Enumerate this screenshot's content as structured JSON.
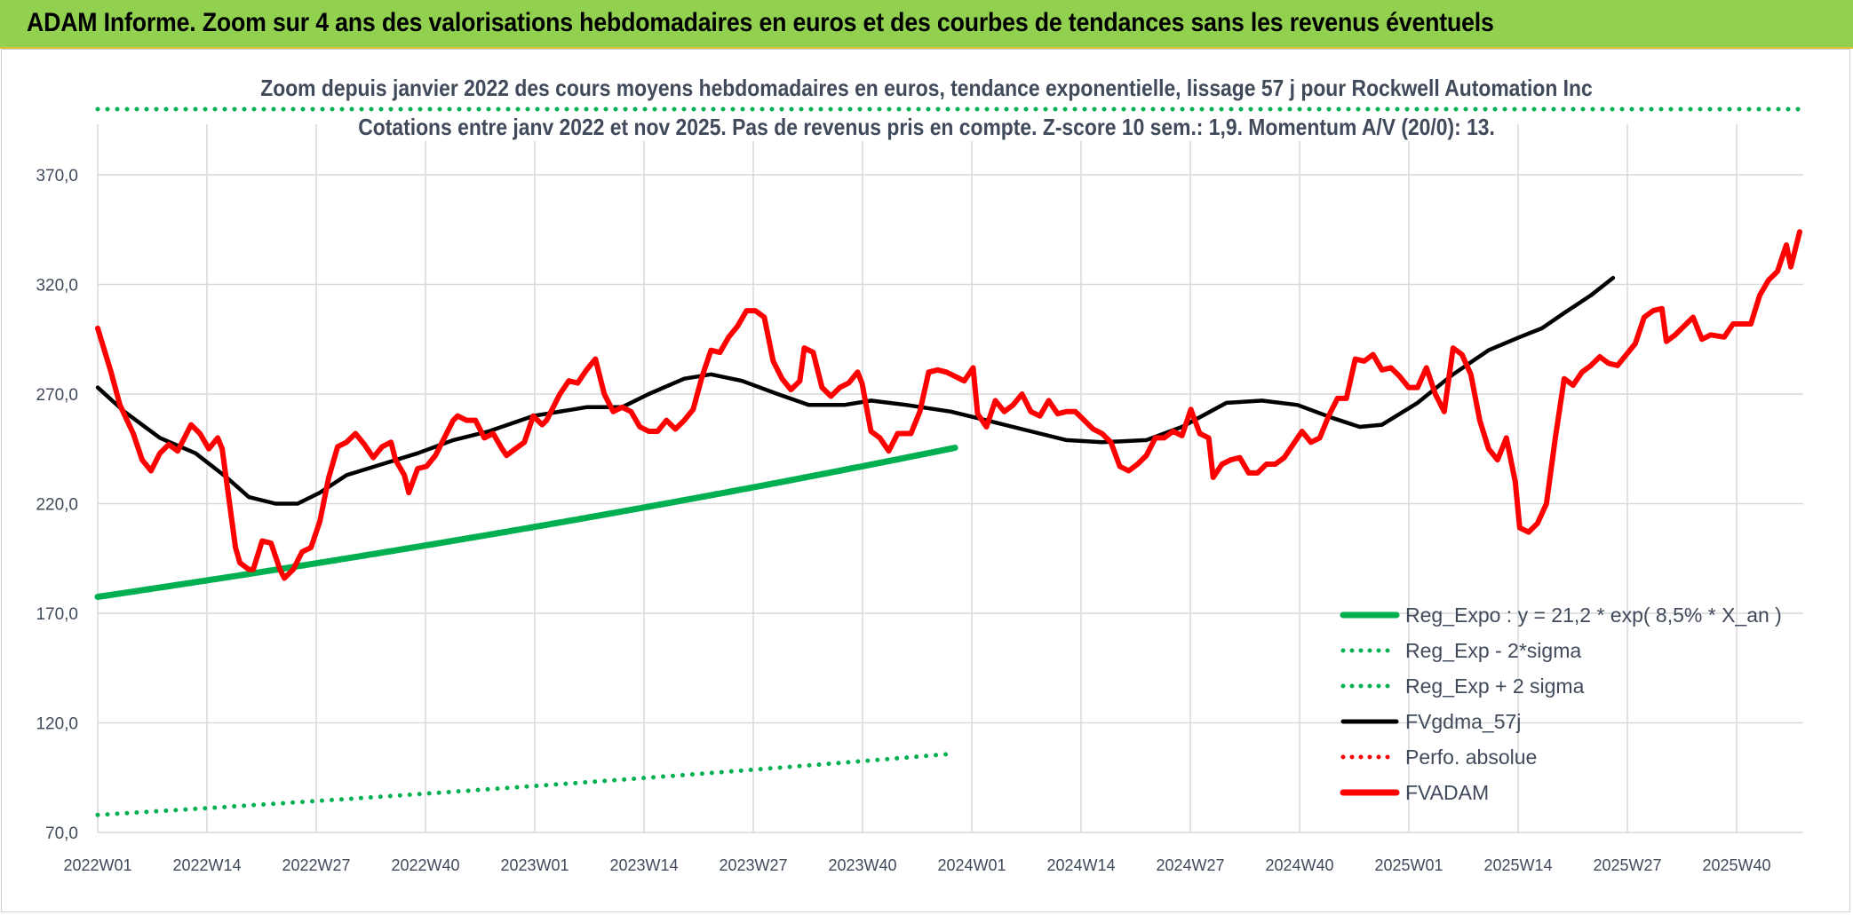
{
  "header": {
    "title": "ADAM Informe. Zoom sur 4 ans des valorisations hebdomadaires en euros et des courbes de tendances sans les revenus éventuels"
  },
  "chart_data": {
    "type": "line",
    "title": "Zoom depuis janvier 2022 des cours moyens hebdomadaires en euros, tendance exponentielle, lissage 57 j pour Rockwell Automation Inc",
    "subtitle": "Cotations entre janv 2022 et nov 2025. Pas de revenus pris en compte. Z-score 10 sem.: 1,9. Momentum A/V (20/0): 13.",
    "x_ticks": [
      "2022W01",
      "2022W14",
      "2022W27",
      "2022W40",
      "2023W01",
      "2023W14",
      "2023W27",
      "2023W40",
      "2024W01",
      "2024W14",
      "2024W27",
      "2024W40",
      "2025W01",
      "2025W14",
      "2025W27",
      "2025W40"
    ],
    "n_weeks": 205,
    "ylim": [
      70,
      400
    ],
    "y_ticks": [
      "70,0",
      "120,0",
      "170,0",
      "220,0",
      "270,0",
      "320,0",
      "370,0"
    ],
    "y_tick_values": [
      70,
      120,
      170,
      220,
      270,
      320,
      370
    ],
    "grid": true,
    "legend_position": "bottom-right",
    "series": [
      {
        "name": "Reg_Expo : y = 21,2 * exp( 8,5% *  X_an )",
        "style": "solid",
        "color": "#00b050",
        "start": 177.5,
        "end": 245.5
      },
      {
        "name": "Reg_Exp - 2*sigma",
        "style": "dotted",
        "color": "#00b050",
        "start": 78.0,
        "end": 106.0
      },
      {
        "name": "Reg_Exp + 2 sigma",
        "style": "dotted",
        "color": "#00b050",
        "start": 400.0,
        "end": 400.0
      },
      {
        "name": "FVgdma_57j",
        "style": "solid",
        "color": "#000000",
        "points": [
          [
            0,
            273
          ],
          [
            6,
            262
          ],
          [
            14,
            250
          ],
          [
            22,
            243
          ],
          [
            29,
            232
          ],
          [
            34,
            223
          ],
          [
            40,
            220
          ],
          [
            45,
            220
          ],
          [
            50,
            225
          ],
          [
            56,
            233
          ],
          [
            64,
            238
          ],
          [
            72,
            243
          ],
          [
            80,
            249
          ],
          [
            88,
            253
          ],
          [
            98,
            260
          ],
          [
            110,
            264
          ],
          [
            118,
            264
          ],
          [
            124,
            270
          ],
          [
            132,
            277
          ],
          [
            138,
            279
          ],
          [
            145,
            276
          ],
          [
            153,
            270
          ],
          [
            160,
            265
          ],
          [
            168,
            265
          ],
          [
            174,
            267
          ],
          [
            182,
            265
          ],
          [
            192,
            262
          ],
          [
            200,
            258
          ],
          [
            210,
            253
          ],
          [
            218,
            249
          ],
          [
            226,
            248
          ],
          [
            236,
            249
          ],
          [
            244,
            255
          ],
          [
            254,
            266
          ],
          [
            262,
            267
          ],
          [
            270,
            265
          ],
          [
            278,
            259
          ],
          [
            284,
            255
          ],
          [
            289,
            256
          ],
          [
            297,
            266
          ],
          [
            305,
            279
          ],
          [
            313,
            290
          ],
          [
            320,
            296
          ],
          [
            325,
            300
          ],
          [
            330,
            307
          ],
          [
            336,
            315
          ],
          [
            341,
            323
          ]
        ]
      },
      {
        "name": "Perfo. absolue",
        "style": "dotted",
        "color": "#ff0000",
        "points": []
      },
      {
        "name": "FVADAM",
        "style": "solid",
        "color": "#ff0000",
        "points": [
          [
            0,
            300
          ],
          [
            3,
            280
          ],
          [
            5,
            265
          ],
          [
            8,
            252
          ],
          [
            10,
            240
          ],
          [
            12,
            235
          ],
          [
            14,
            243
          ],
          [
            16,
            247
          ],
          [
            18,
            244
          ],
          [
            20,
            252
          ],
          [
            21,
            256
          ],
          [
            23,
            252
          ],
          [
            25,
            245
          ],
          [
            27,
            250
          ],
          [
            28,
            245
          ],
          [
            30,
            215
          ],
          [
            31,
            200
          ],
          [
            32,
            193
          ],
          [
            34,
            190
          ],
          [
            35,
            190
          ],
          [
            37,
            203
          ],
          [
            39,
            202
          ],
          [
            41,
            190
          ],
          [
            42,
            186
          ],
          [
            44,
            190
          ],
          [
            46,
            198
          ],
          [
            48,
            200
          ],
          [
            50,
            212
          ],
          [
            52,
            232
          ],
          [
            54,
            246
          ],
          [
            56,
            248
          ],
          [
            58,
            252
          ],
          [
            60,
            247
          ],
          [
            62,
            241
          ],
          [
            64,
            246
          ],
          [
            66,
            248
          ],
          [
            67,
            240
          ],
          [
            69,
            233
          ],
          [
            70,
            225
          ],
          [
            72,
            236
          ],
          [
            74,
            237
          ],
          [
            76,
            242
          ],
          [
            78,
            250
          ],
          [
            80,
            258
          ],
          [
            81,
            260
          ],
          [
            83,
            258
          ],
          [
            85,
            258
          ],
          [
            87,
            250
          ],
          [
            89,
            252
          ],
          [
            91,
            245
          ],
          [
            92,
            242
          ],
          [
            94,
            245
          ],
          [
            96,
            248
          ],
          [
            98,
            260
          ],
          [
            100,
            256
          ],
          [
            101,
            258
          ],
          [
            103,
            266
          ],
          [
            104,
            270
          ],
          [
            106,
            276
          ],
          [
            108,
            275
          ],
          [
            110,
            281
          ],
          [
            112,
            286
          ],
          [
            114,
            270
          ],
          [
            116,
            262
          ],
          [
            118,
            264
          ],
          [
            120,
            262
          ],
          [
            122,
            255
          ],
          [
            124,
            253
          ],
          [
            126,
            253
          ],
          [
            128,
            258
          ],
          [
            130,
            254
          ],
          [
            132,
            258
          ],
          [
            134,
            263
          ],
          [
            136,
            278
          ],
          [
            138,
            290
          ],
          [
            140,
            289
          ],
          [
            142,
            296
          ],
          [
            144,
            301
          ],
          [
            146,
            308
          ],
          [
            148,
            308
          ],
          [
            150,
            305
          ],
          [
            152,
            285
          ],
          [
            154,
            277
          ],
          [
            156,
            272
          ],
          [
            158,
            276
          ],
          [
            159,
            291
          ],
          [
            161,
            289
          ],
          [
            163,
            273
          ],
          [
            165,
            269
          ],
          [
            167,
            273
          ],
          [
            169,
            275
          ],
          [
            171,
            280
          ],
          [
            172,
            275
          ],
          [
            174,
            253
          ],
          [
            176,
            250
          ],
          [
            178,
            244
          ],
          [
            180,
            252
          ],
          [
            182,
            252
          ],
          [
            183,
            252
          ],
          [
            185,
            262
          ],
          [
            187,
            280
          ],
          [
            189,
            281
          ],
          [
            191,
            280
          ],
          [
            193,
            278
          ],
          [
            195,
            276
          ],
          [
            197,
            282
          ],
          [
            198,
            261
          ],
          [
            200,
            255
          ],
          [
            202,
            267
          ],
          [
            204,
            262
          ],
          [
            206,
            265
          ],
          [
            208,
            270
          ],
          [
            210,
            262
          ],
          [
            212,
            260
          ],
          [
            214,
            267
          ],
          [
            216,
            261
          ],
          [
            218,
            262
          ],
          [
            220,
            262
          ],
          [
            222,
            258
          ],
          [
            224,
            254
          ],
          [
            226,
            252
          ],
          [
            228,
            248
          ],
          [
            230,
            237
          ],
          [
            232,
            235
          ],
          [
            234,
            238
          ],
          [
            236,
            242
          ],
          [
            238,
            250
          ],
          [
            240,
            250
          ],
          [
            242,
            253
          ],
          [
            244,
            251
          ],
          [
            246,
            263
          ],
          [
            248,
            252
          ],
          [
            250,
            250
          ],
          [
            251,
            232
          ],
          [
            253,
            238
          ],
          [
            255,
            240
          ],
          [
            257,
            241
          ],
          [
            259,
            234
          ],
          [
            261,
            234
          ],
          [
            263,
            238
          ],
          [
            265,
            238
          ],
          [
            267,
            241
          ],
          [
            269,
            247
          ],
          [
            271,
            253
          ],
          [
            273,
            248
          ],
          [
            275,
            250
          ],
          [
            277,
            260
          ],
          [
            279,
            268
          ],
          [
            281,
            268
          ],
          [
            283,
            286
          ],
          [
            285,
            285
          ],
          [
            287,
            288
          ],
          [
            289,
            281
          ],
          [
            291,
            282
          ],
          [
            293,
            278
          ],
          [
            295,
            273
          ],
          [
            297,
            273
          ],
          [
            299,
            282
          ],
          [
            301,
            270
          ],
          [
            303,
            262
          ],
          [
            305,
            291
          ],
          [
            307,
            288
          ],
          [
            309,
            279
          ],
          [
            311,
            258
          ],
          [
            313,
            245
          ],
          [
            315,
            240
          ],
          [
            317,
            250
          ],
          [
            318,
            240
          ],
          [
            319,
            230
          ],
          [
            320,
            209
          ],
          [
            322,
            207
          ],
          [
            324,
            211
          ],
          [
            326,
            220
          ],
          [
            328,
            250
          ],
          [
            330,
            277
          ],
          [
            332,
            274
          ],
          [
            334,
            280
          ],
          [
            336,
            283
          ],
          [
            338,
            287
          ],
          [
            340,
            284
          ],
          [
            342,
            283
          ],
          [
            344,
            288
          ],
          [
            346,
            293
          ],
          [
            348,
            305
          ],
          [
            350,
            308
          ],
          [
            352,
            309
          ],
          [
            353,
            294
          ],
          [
            355,
            297
          ],
          [
            357,
            301
          ],
          [
            359,
            305
          ],
          [
            361,
            295
          ],
          [
            363,
            297
          ],
          [
            366,
            296
          ],
          [
            368,
            302
          ],
          [
            372,
            302
          ],
          [
            374,
            315
          ],
          [
            376,
            322
          ],
          [
            378,
            326
          ],
          [
            380,
            338
          ],
          [
            381,
            328
          ],
          [
            383,
            344
          ]
        ]
      }
    ]
  }
}
